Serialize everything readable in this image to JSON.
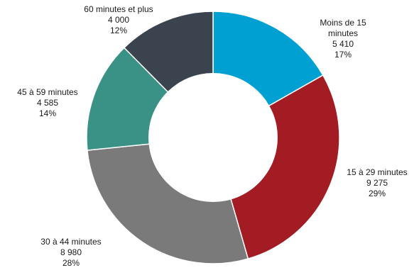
{
  "chart_data": {
    "type": "pie",
    "donut": true,
    "title": "",
    "slices": [
      {
        "label_lines": [
          "Moins de 15",
          "minutes"
        ],
        "value_text": "5 410",
        "pct_text": "17%",
        "value": 5410,
        "color": "#00a0d2"
      },
      {
        "label_lines": [
          "15 à 29 minutes"
        ],
        "value_text": "9 275",
        "pct_text": "29%",
        "value": 9275,
        "color": "#a31c23"
      },
      {
        "label_lines": [
          "30 à 44 minutes"
        ],
        "value_text": "8 980",
        "pct_text": "28%",
        "value": 8980,
        "color": "#7a7a7a"
      },
      {
        "label_lines": [
          "45 à 59 minutes"
        ],
        "value_text": "4 585",
        "pct_text": "14%",
        "value": 4585,
        "color": "#3a9286"
      },
      {
        "label_lines": [
          "60 minutes et plus"
        ],
        "value_text": "4 000",
        "pct_text": "12%",
        "value": 4000,
        "color": "#3a434e"
      }
    ]
  }
}
